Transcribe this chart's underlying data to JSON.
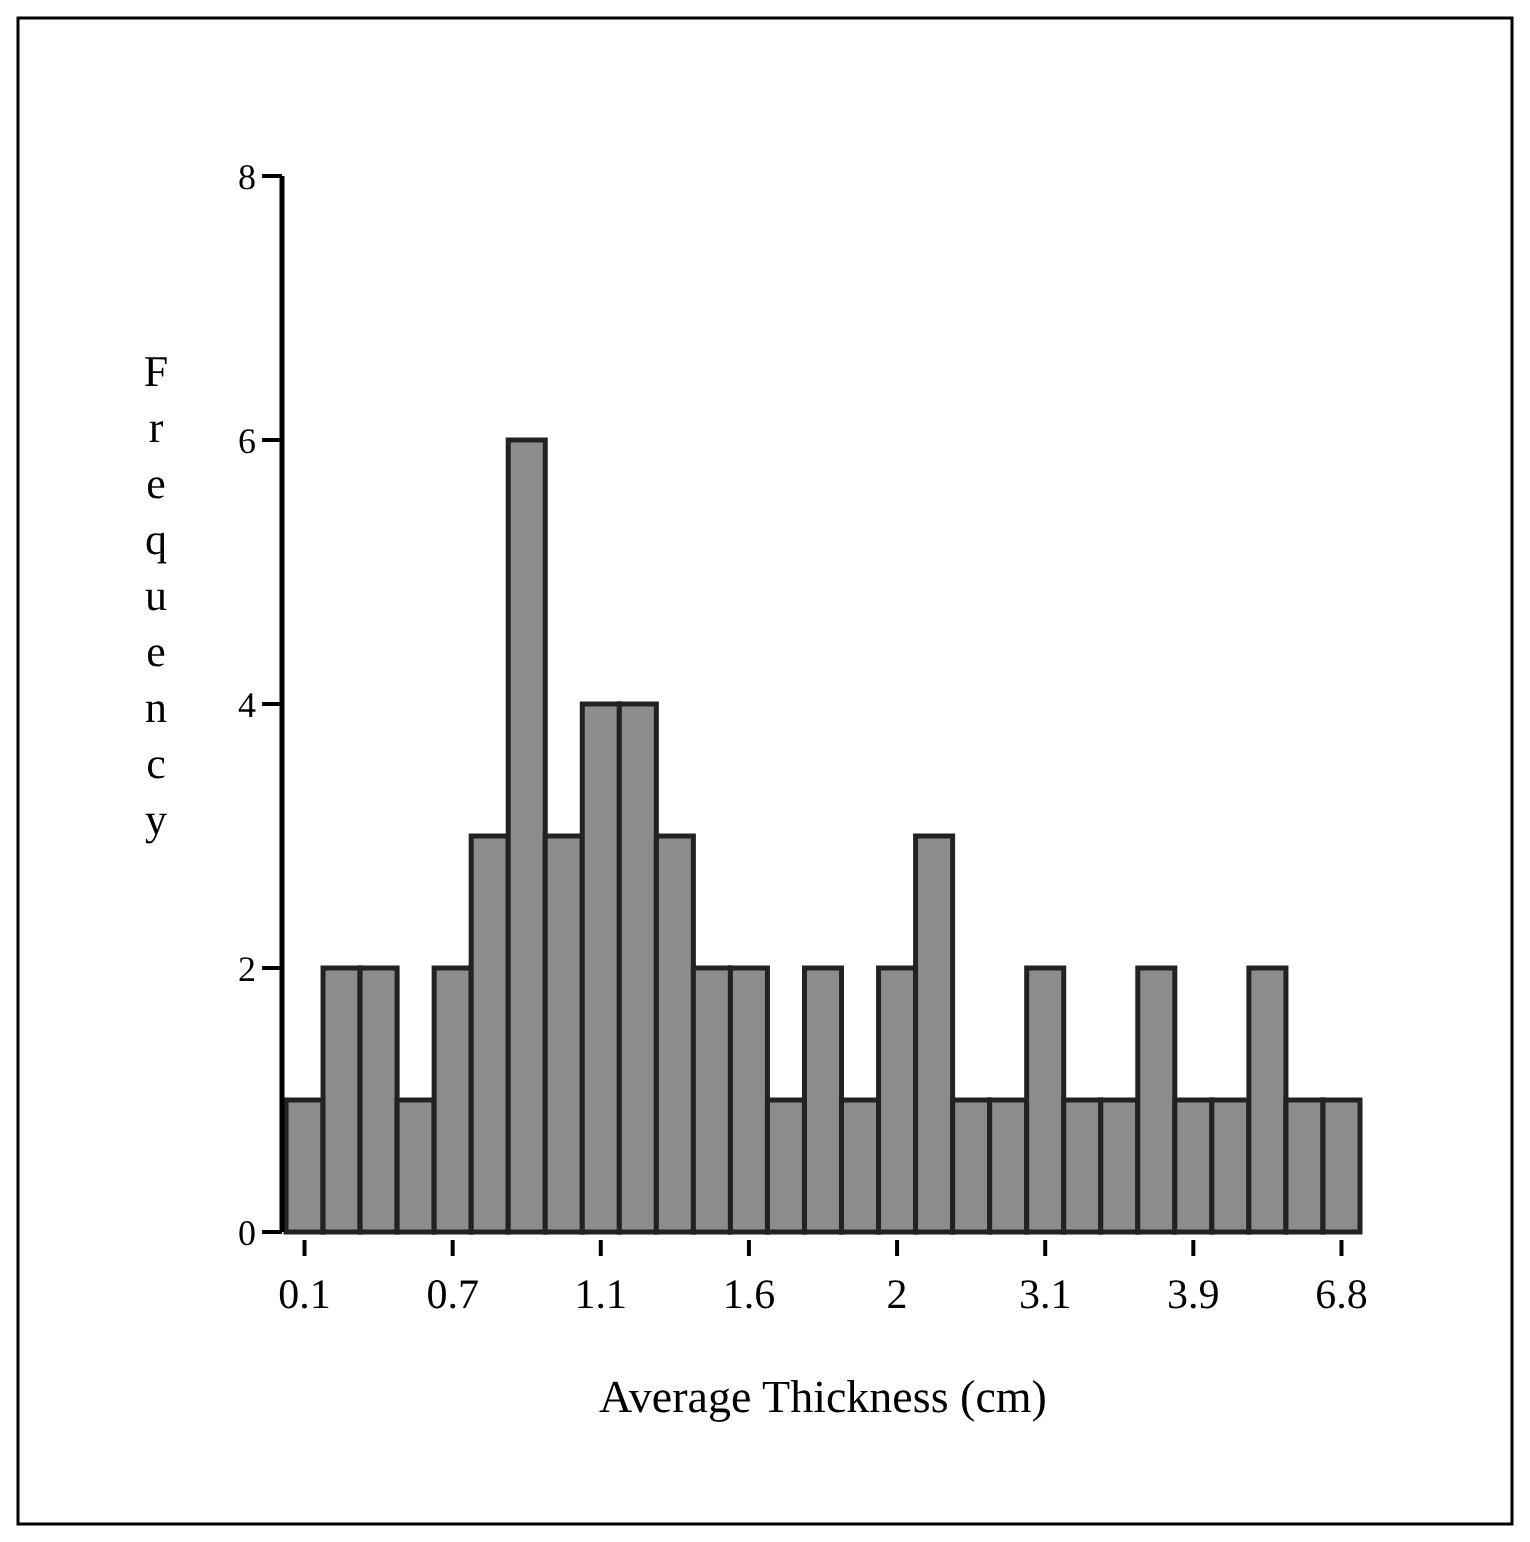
{
  "chart_data": {
    "type": "bar",
    "xlabel": "Average Thickness (cm)",
    "ylabel": "Frequency",
    "categories": [
      "0.1",
      null,
      null,
      null,
      "0.7",
      null,
      null,
      null,
      "1.1",
      null,
      null,
      null,
      "1.6",
      null,
      null,
      null,
      "2",
      null,
      null,
      null,
      "3.1",
      null,
      null,
      null,
      "3.9",
      null,
      null,
      null,
      "6.8"
    ],
    "values": [
      1,
      2,
      2,
      1,
      2,
      3,
      6,
      3,
      4,
      4,
      3,
      2,
      2,
      1,
      2,
      1,
      2,
      3,
      1,
      1,
      2,
      1,
      1,
      2,
      1,
      1,
      2,
      1,
      1
    ],
    "color": "#8c8c8c",
    "ylim": [
      0,
      8
    ],
    "yticks": [
      0,
      2,
      4,
      6,
      8
    ],
    "grid": false
  }
}
